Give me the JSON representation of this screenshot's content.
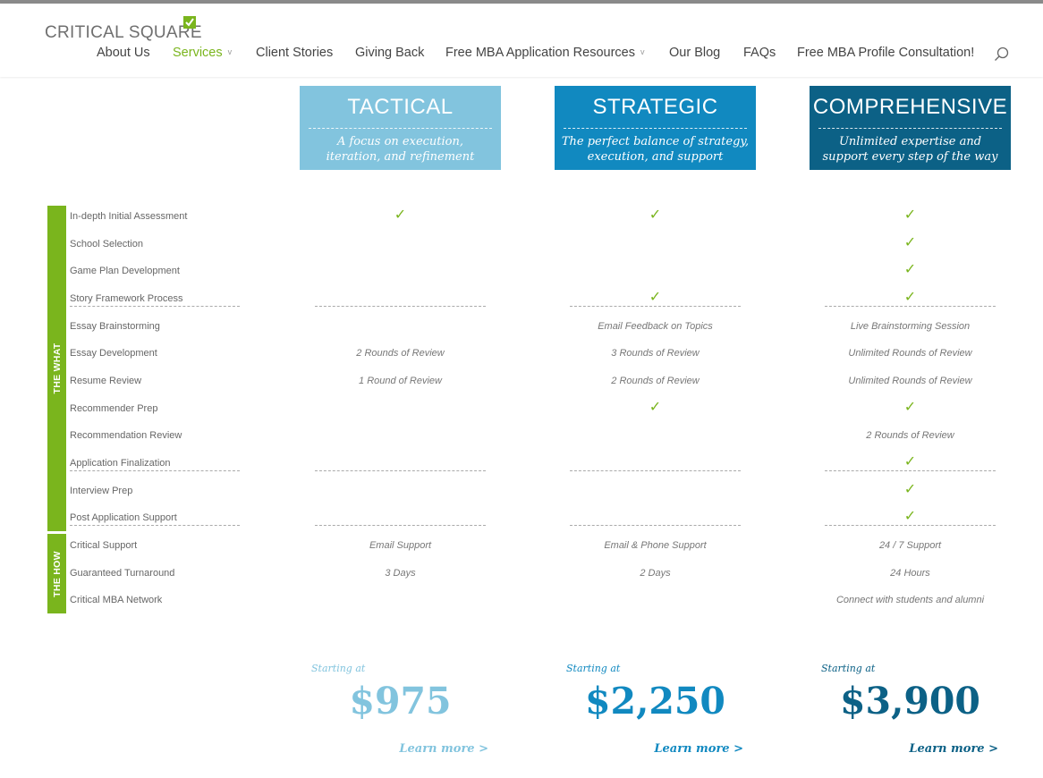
{
  "header": {
    "logo_text": "CRITICAL SQUARE",
    "nav": [
      {
        "label": "About Us"
      },
      {
        "label": "Services",
        "active": true
      },
      {
        "label": "Client Stories"
      },
      {
        "label": "Giving Back"
      },
      {
        "label": "Free MBA Application Resources"
      },
      {
        "label": "Our Blog"
      },
      {
        "label": "FAQs"
      },
      {
        "label": "Free MBA Profile Consultation!"
      }
    ],
    "caret": "v",
    "search_icon": "search-icon"
  },
  "colors": {
    "brand_green": "#7ab51d",
    "tactical": "#82c4de",
    "strategic": "#1189c0",
    "comprehensive": "#0c6186"
  },
  "plans": [
    {
      "name": "TACTICAL",
      "desc_line1": "A focus on execution,",
      "desc_line2": "iteration, and refinement",
      "starting": "Starting at",
      "price": "$975",
      "learn": "Learn more >"
    },
    {
      "name": "STRATEGIC",
      "desc_line1": "The perfect balance of strategy,",
      "desc_line2": "execution, and support",
      "starting": "Starting at",
      "price": "$2,250",
      "learn": "Learn more >"
    },
    {
      "name": "COMPREHENSIVE",
      "desc_line1": "Unlimited expertise and",
      "desc_line2": "support every step of the way",
      "starting": "Starting at",
      "price": "$3,900",
      "learn": "Learn more >"
    }
  ],
  "sections": {
    "what": "THE WHAT",
    "how": "THE HOW"
  },
  "check_symbol": "✓",
  "features": [
    {
      "name": "In-depth Initial Assessment",
      "values": [
        "check",
        "check",
        "check"
      ]
    },
    {
      "name": "School Selection",
      "values": [
        "",
        "",
        "check"
      ]
    },
    {
      "name": "Game Plan Development",
      "values": [
        "",
        "",
        "check"
      ]
    },
    {
      "name": "Story Framework Process",
      "values": [
        "",
        "check",
        "check"
      ]
    },
    {
      "name": "Essay Brainstorming",
      "values": [
        "",
        "Email Feedback on Topics",
        "Live Brainstorming Session"
      ]
    },
    {
      "name": "Essay Development",
      "values": [
        "2 Rounds of Review",
        "3 Rounds of Review",
        "Unlimited Rounds of Review"
      ]
    },
    {
      "name": "Resume Review",
      "values": [
        "1 Round of Review",
        "2 Rounds of Review",
        "Unlimited Rounds of Review"
      ]
    },
    {
      "name": "Recommender Prep",
      "values": [
        "",
        "check",
        "check"
      ]
    },
    {
      "name": "Recommendation Review",
      "values": [
        "",
        "",
        "2 Rounds of Review"
      ]
    },
    {
      "name": "Application Finalization",
      "values": [
        "",
        "",
        "check"
      ]
    },
    {
      "name": "Interview Prep",
      "values": [
        "",
        "",
        "check"
      ]
    },
    {
      "name": "Post Application Support",
      "values": [
        "",
        "",
        "check"
      ]
    },
    {
      "name": "Critical Support",
      "values": [
        "Email Support",
        "Email & Phone Support",
        "24 / 7 Support"
      ]
    },
    {
      "name": "Guaranteed Turnaround",
      "values": [
        "3 Days",
        "2 Days",
        "24 Hours"
      ]
    },
    {
      "name": "Critical MBA Network",
      "values": [
        "",
        "",
        "Connect with students and alumni"
      ]
    }
  ]
}
